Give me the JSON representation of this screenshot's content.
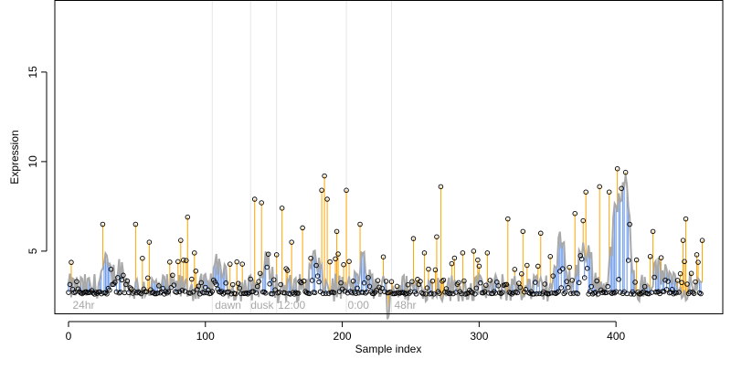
{
  "chart_data": {
    "type": "scatter",
    "title": "",
    "xlabel": "Sample index",
    "ylabel": "Expression",
    "xlim": [
      -10,
      478
    ],
    "ylim": [
      1.5,
      19
    ],
    "baseline": 2.6,
    "x_ticks": [
      0,
      100,
      200,
      300,
      400
    ],
    "y_ticks": [
      5,
      10,
      15
    ],
    "grid": false,
    "legend": "none",
    "colors": {
      "up_stem": "#FFA500",
      "down_stem": "#6495ED",
      "trend_line": "#A9A9A9",
      "marker_edge": "#000000",
      "annotation_text": "#A8A8A8",
      "guide_line": "#E5E5E5"
    },
    "vertical_guides": [
      {
        "x": 105,
        "label": ""
      },
      {
        "x": 133,
        "label": ""
      },
      {
        "x": 152,
        "label": ""
      },
      {
        "x": 203,
        "label": ""
      },
      {
        "x": 236,
        "label": ""
      }
    ],
    "annotations": [
      {
        "x": 3,
        "label": "24hr"
      },
      {
        "x": 107,
        "label": "dawn"
      },
      {
        "x": 133,
        "label": "dusk"
      },
      {
        "x": 153,
        "label": "12:00"
      },
      {
        "x": 204,
        "label": "0:00"
      },
      {
        "x": 238,
        "label": "48hr"
      }
    ],
    "peaks": [
      {
        "x": 25,
        "y": 6.5
      },
      {
        "x": 49,
        "y": 6.5
      },
      {
        "x": 54,
        "y": 4.6
      },
      {
        "x": 59,
        "y": 5.5
      },
      {
        "x": 82,
        "y": 5.6
      },
      {
        "x": 87,
        "y": 6.9
      },
      {
        "x": 92,
        "y": 4.9
      },
      {
        "x": 123,
        "y": 4.4
      },
      {
        "x": 136,
        "y": 7.9
      },
      {
        "x": 141,
        "y": 7.7
      },
      {
        "x": 152,
        "y": 4.8
      },
      {
        "x": 156,
        "y": 7.4
      },
      {
        "x": 163,
        "y": 5.5
      },
      {
        "x": 171,
        "y": 6.3
      },
      {
        "x": 185,
        "y": 8.4
      },
      {
        "x": 187,
        "y": 9.2
      },
      {
        "x": 189,
        "y": 7.9
      },
      {
        "x": 196,
        "y": 6.1
      },
      {
        "x": 203,
        "y": 8.4
      },
      {
        "x": 213,
        "y": 6.5
      },
      {
        "x": 252,
        "y": 5.7
      },
      {
        "x": 260,
        "y": 4.9
      },
      {
        "x": 269,
        "y": 5.8
      },
      {
        "x": 272,
        "y": 8.6
      },
      {
        "x": 280,
        "y": 4.3
      },
      {
        "x": 288,
        "y": 4.9
      },
      {
        "x": 296,
        "y": 5.0
      },
      {
        "x": 306,
        "y": 4.9
      },
      {
        "x": 321,
        "y": 6.8
      },
      {
        "x": 332,
        "y": 6.1
      },
      {
        "x": 345,
        "y": 6.0
      },
      {
        "x": 352,
        "y": 4.7
      },
      {
        "x": 370,
        "y": 7.1
      },
      {
        "x": 376,
        "y": 6.7
      },
      {
        "x": 378,
        "y": 8.3
      },
      {
        "x": 388,
        "y": 8.6
      },
      {
        "x": 395,
        "y": 8.3
      },
      {
        "x": 401,
        "y": 9.6
      },
      {
        "x": 404,
        "y": 8.5
      },
      {
        "x": 407,
        "y": 9.4
      },
      {
        "x": 410,
        "y": 6.5
      },
      {
        "x": 425,
        "y": 4.7
      },
      {
        "x": 427,
        "y": 6.1
      },
      {
        "x": 449,
        "y": 5.6
      },
      {
        "x": 451,
        "y": 6.8
      },
      {
        "x": 459,
        "y": 4.8
      },
      {
        "x": 463,
        "y": 5.6
      }
    ],
    "clusters": [
      {
        "center": 27,
        "height": 4.0
      },
      {
        "center": 37,
        "height": 3.9
      },
      {
        "center": 110,
        "height": 4.2
      },
      {
        "center": 145,
        "height": 4.2
      },
      {
        "center": 180,
        "height": 4.5
      },
      {
        "center": 215,
        "height": 4.2
      },
      {
        "center": 360,
        "height": 5.6
      },
      {
        "center": 375,
        "height": 4.6
      },
      {
        "center": 380,
        "height": 4.2
      },
      {
        "center": 400,
        "height": 7.2
      },
      {
        "center": 407,
        "height": 8.8
      },
      {
        "center": 430,
        "height": 3.8
      },
      {
        "center": 440,
        "height": 3.6
      }
    ],
    "dips": [
      {
        "x": 233,
        "y": 1.2
      },
      {
        "x": 234,
        "y": 1.4
      },
      {
        "x": 153,
        "y": 2.1
      }
    ]
  }
}
